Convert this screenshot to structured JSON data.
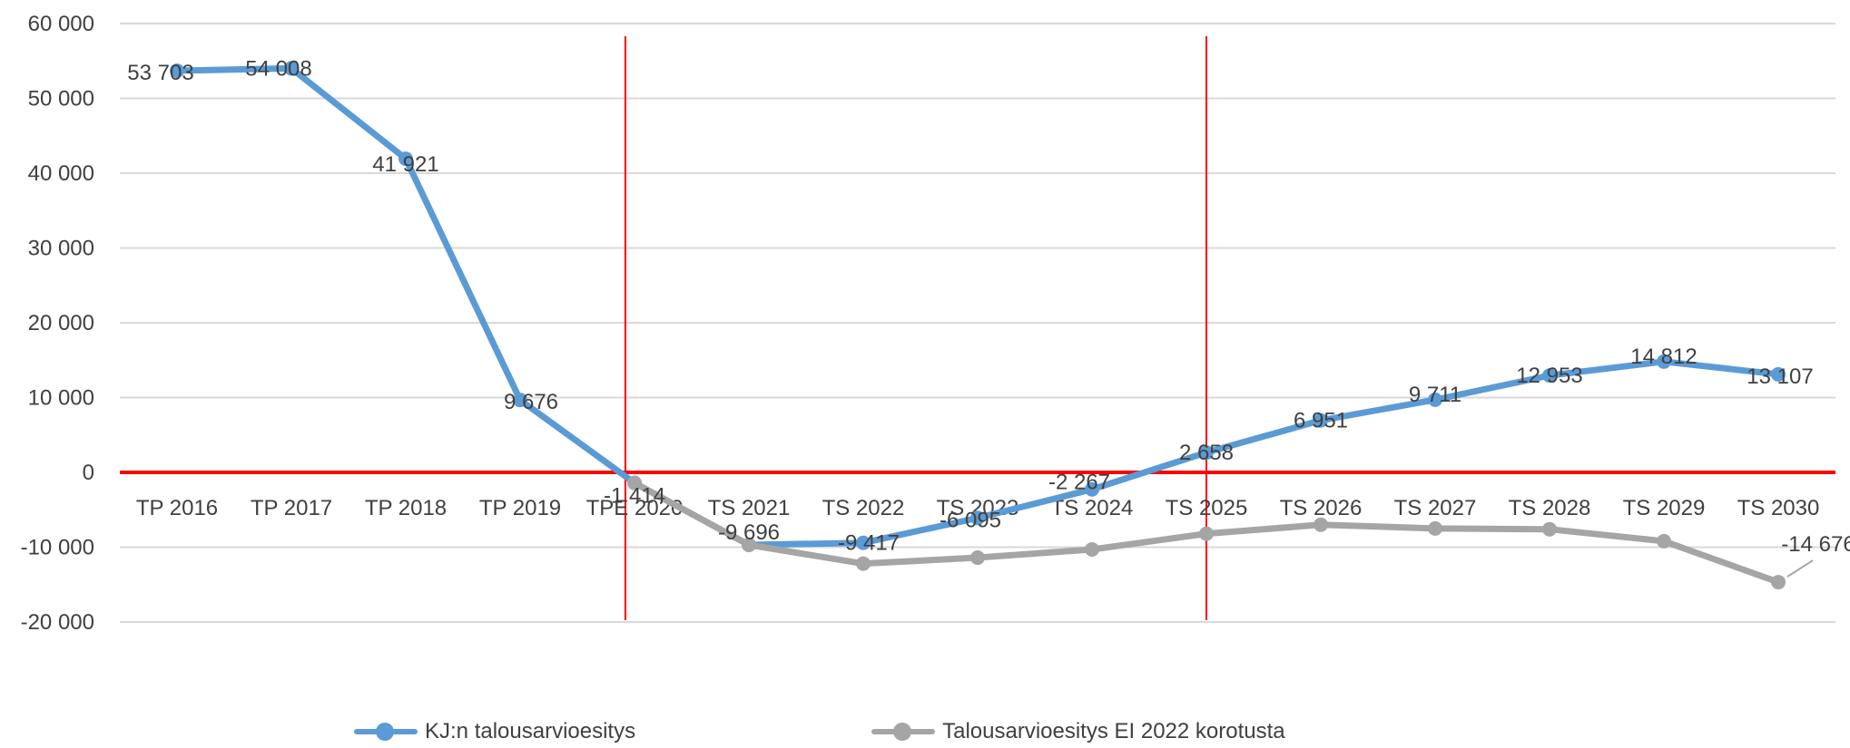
{
  "chart_data": {
    "type": "line",
    "categories": [
      "TP 2016",
      "TP 2017",
      "TP 2018",
      "TP 2019",
      "TPE 2020",
      "TS 2021",
      "TS 2022",
      "TS 2023",
      "TS 2024",
      "TS 2025",
      "TS 2026",
      "TS 2027",
      "TS 2028",
      "TS 2029",
      "TS 2030"
    ],
    "ylim": [
      -20000,
      60000
    ],
    "yticks": [
      60000,
      50000,
      40000,
      30000,
      20000,
      10000,
      0,
      -10000,
      -20000
    ],
    "ytick_labels": [
      "60 000",
      "50 000",
      "40 000",
      "30 000",
      "20 000",
      "10 000",
      "0",
      "-10 000",
      "-20 000"
    ],
    "grid": true,
    "legend_position": "bottom",
    "series": [
      {
        "name": "KJ:n talousarvioesitys",
        "color": "#5b9bd5",
        "values": [
          53703,
          54008,
          41921,
          9676,
          -1414,
          -9696,
          -9417,
          -6095,
          -2267,
          2658,
          6951,
          9711,
          12953,
          14812,
          13107
        ],
        "labels": [
          "53 703",
          "54 008",
          "41 921",
          "9 676",
          "-1 414",
          "-9 696",
          "-9 417",
          "-6 095",
          "-2 267",
          "2 658",
          "6 951",
          "9 711",
          "12 953",
          "14 812",
          "13 107"
        ]
      },
      {
        "name": "Talousarvioesitys EI 2022 korotusta",
        "color": "#a5a5a5",
        "values": [
          null,
          null,
          null,
          null,
          -1414,
          -9696,
          -12200,
          -11400,
          -10300,
          -8200,
          -7000,
          -7500,
          -7600,
          -9200,
          -14676
        ],
        "labels": [
          null,
          null,
          null,
          null,
          null,
          null,
          null,
          null,
          null,
          null,
          null,
          null,
          null,
          null,
          "-14 676"
        ]
      }
    ],
    "zero_line_color": "#ff0000",
    "vertical_markers_color": "#ff0000",
    "vertical_markers_at": [
      "TPE 2020",
      "TS 2025"
    ]
  }
}
